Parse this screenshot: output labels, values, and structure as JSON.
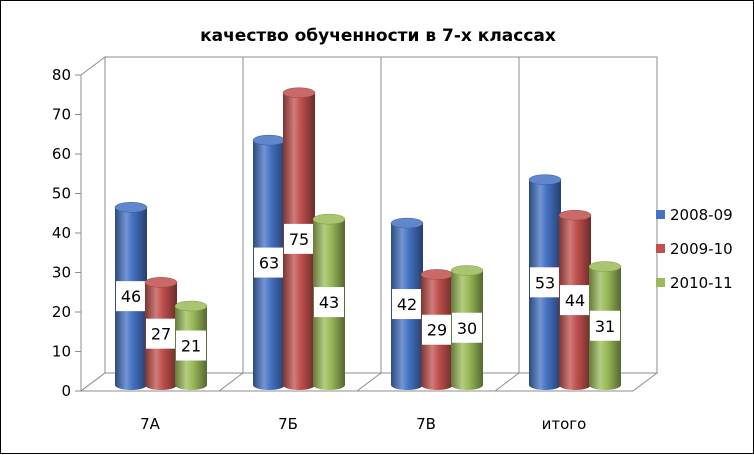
{
  "chart_data": {
    "type": "bar",
    "title": "качество обученности в 7-х классах",
    "categories": [
      "7А",
      "7Б",
      "7В",
      "итого"
    ],
    "series": [
      {
        "name": "2008-09",
        "values": [
          46,
          63,
          42,
          53
        ],
        "color": "#4472c4"
      },
      {
        "name": "2009-10",
        "values": [
          27,
          75,
          29,
          44
        ],
        "color": "#c0504d"
      },
      {
        "name": "2010-11",
        "values": [
          21,
          43,
          30,
          31
        ],
        "color": "#9bbb59"
      }
    ],
    "ylim": [
      0,
      80
    ],
    "yticks": [
      0,
      10,
      20,
      30,
      40,
      50,
      60,
      70,
      80
    ],
    "grid": "vertical",
    "legend": "right",
    "style": "3d-cylinder"
  }
}
